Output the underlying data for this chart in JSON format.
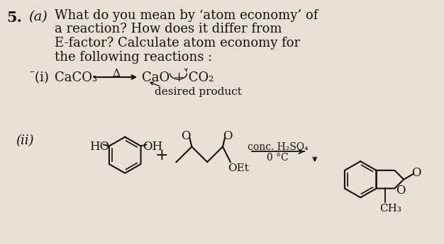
{
  "bg_color": "#e8e0d5",
  "text_color": "#111111",
  "title_num": "5.",
  "title_part": "(a)",
  "paragraph_lines": [
    "What do you mean by ‘atom economy’ of",
    "a reaction? How does it differ from",
    "E-factor? Calculate atom economy for",
    "the following reactions :"
  ],
  "rxn1_label": "¯(i)",
  "rxn1_reactant": "CaCO₃",
  "rxn1_heat": "Δ",
  "rxn1_products": "CaO + CO₂",
  "rxn1_desired": "desired product",
  "rxn2_label": "(ii)",
  "rxn2_condition1": "conc. H₂SO₄",
  "rxn2_condition2": "0 °C",
  "rxn2_HO": "HO",
  "rxn2_OH": "OH",
  "rxn2_OEt": "OEt",
  "rxn2_CH3": "CH₃",
  "font_bold": 15,
  "font_main": 13,
  "font_chem": 12,
  "font_small": 10
}
